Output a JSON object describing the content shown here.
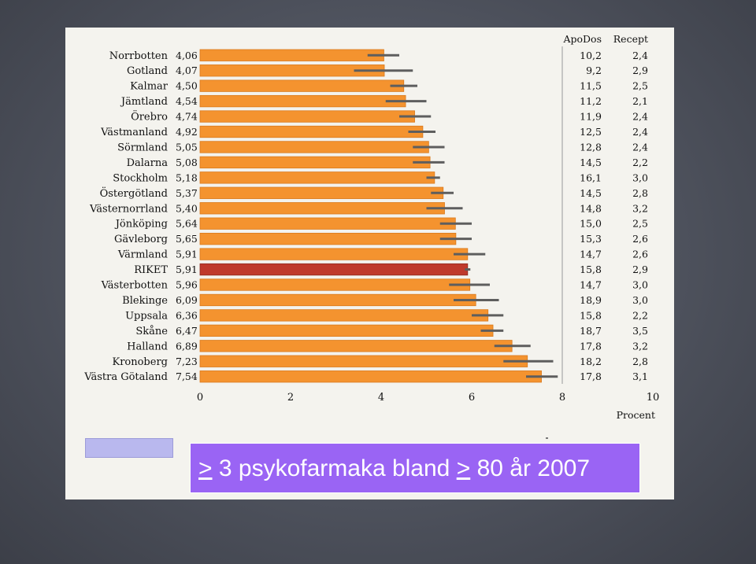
{
  "caption": {
    "ge_symbol_1": ">",
    "part_1": " 3 psykofarmaka bland ",
    "ge_symbol_2": ">",
    "part_2": " 80 år 2007"
  },
  "chart_data": {
    "type": "bar",
    "orientation": "horizontal",
    "categories": [
      "Norrbotten",
      "Gotland",
      "Kalmar",
      "Jämtland",
      "Örebro",
      "Västmanland",
      "Sörmland",
      "Dalarna",
      "Stockholm",
      "Östergötland",
      "Västernorrland",
      "Jönköping",
      "Gävleborg",
      "Värmland",
      "RIKET",
      "Västerbotten",
      "Blekinge",
      "Uppsala",
      "Skåne",
      "Halland",
      "Kronoberg",
      "Västra Götaland"
    ],
    "value_labels": [
      "4,06",
      "4,07",
      "4,50",
      "4,54",
      "4,74",
      "4,92",
      "5,05",
      "5,08",
      "5,18",
      "5,37",
      "5,40",
      "5,64",
      "5,65",
      "5,91",
      "5,91",
      "5,96",
      "6,09",
      "6,36",
      "6,47",
      "6,89",
      "7,23",
      "7,54"
    ],
    "values": [
      4.06,
      4.07,
      4.5,
      4.54,
      4.74,
      4.92,
      5.05,
      5.08,
      5.18,
      5.37,
      5.4,
      5.64,
      5.65,
      5.91,
      5.91,
      5.96,
      6.09,
      6.36,
      6.47,
      6.89,
      7.23,
      7.54
    ],
    "ci_low": [
      3.7,
      3.4,
      4.2,
      4.1,
      4.4,
      4.6,
      4.7,
      4.7,
      5.0,
      5.1,
      5.0,
      5.3,
      5.3,
      5.6,
      5.85,
      5.5,
      5.6,
      6.0,
      6.2,
      6.5,
      6.7,
      7.2
    ],
    "ci_high": [
      4.4,
      4.7,
      4.8,
      5.0,
      5.1,
      5.2,
      5.4,
      5.4,
      5.3,
      5.6,
      5.8,
      6.0,
      6.0,
      6.3,
      5.97,
      6.4,
      6.6,
      6.7,
      6.7,
      7.3,
      7.8,
      7.9
    ],
    "highlight_category": "RIKET",
    "bar_color": "#f4932f",
    "highlight_color": "#bf3a2c",
    "errorbar_color": "#5e5e5e",
    "xlim": [
      0,
      10
    ],
    "xticks": [
      0,
      2,
      4,
      6,
      8,
      10
    ],
    "xlabel": "Procent",
    "extra_columns": [
      {
        "header": "ApoDos",
        "values": [
          "10,2",
          "9,2",
          "11,5",
          "11,2",
          "11,9",
          "12,5",
          "12,8",
          "14,5",
          "16,1",
          "14,5",
          "14,8",
          "15,0",
          "15,3",
          "14,7",
          "15,8",
          "14,7",
          "18,9",
          "15,8",
          "18,7",
          "17,8",
          "18,2",
          "17,8"
        ]
      },
      {
        "header": "Recept",
        "values": [
          "2,4",
          "2,9",
          "2,5",
          "2,1",
          "2,4",
          "2,4",
          "2,4",
          "2,2",
          "3,0",
          "2,8",
          "3,2",
          "2,5",
          "2,6",
          "2,6",
          "2,9",
          "3,0",
          "3,0",
          "2,2",
          "3,5",
          "3,2",
          "2,8",
          "3,1"
        ]
      }
    ]
  }
}
